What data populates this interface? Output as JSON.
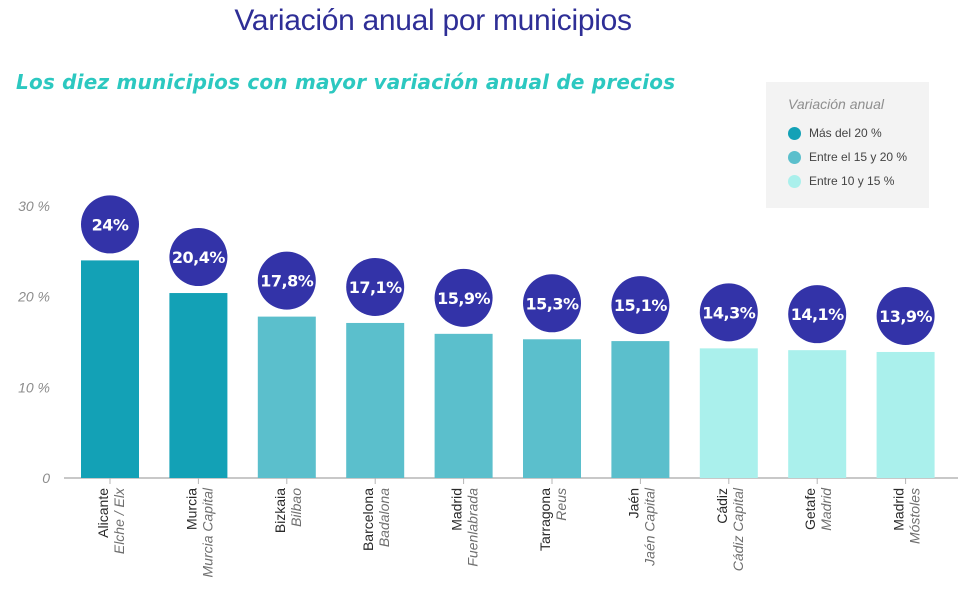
{
  "title": "Variación anual por municipios",
  "subtitle": "Los diez municipios con mayor variación anual de precios",
  "legend": {
    "title": "Variación anual",
    "items": [
      {
        "label": "Más del 20 %",
        "color": "#13a1b6"
      },
      {
        "label": "Entre el 15 y 20 %",
        "color": "#5bbfcc"
      },
      {
        "label": "Entre 10 y 15 %",
        "color": "#aaf0ec"
      }
    ]
  },
  "chart_data": {
    "type": "bar",
    "y_ticks": [
      "0",
      "10 %",
      "20 %",
      "30 %"
    ],
    "y_tick_values": [
      0,
      10,
      20,
      30
    ],
    "ylim": [
      0,
      30
    ],
    "grid": false,
    "legend_position": "top-right",
    "categories": [
      {
        "province": "Alicante",
        "municipality": "Elche / Elx",
        "value": 24,
        "label": "24%",
        "group": 0
      },
      {
        "province": "Murcia",
        "municipality": "Murcia Capital",
        "value": 20.4,
        "label": "20,4%",
        "group": 0
      },
      {
        "province": "Bizkaia",
        "municipality": "Bilbao",
        "value": 17.8,
        "label": "17,8%",
        "group": 1
      },
      {
        "province": "Barcelona",
        "municipality": "Badalona",
        "value": 17.1,
        "label": "17,1%",
        "group": 1
      },
      {
        "province": "Madrid",
        "municipality": "Fuenlabrada",
        "value": 15.9,
        "label": "15,9%",
        "group": 1
      },
      {
        "province": "Tarragona",
        "municipality": "Reus",
        "value": 15.3,
        "label": "15,3%",
        "group": 1
      },
      {
        "province": "Jaén",
        "municipality": "Jaén Capital",
        "value": 15.1,
        "label": "15,1%",
        "group": 1
      },
      {
        "province": "Cádiz",
        "municipality": "Cádiz Capital",
        "value": 14.3,
        "label": "14,3%",
        "group": 2
      },
      {
        "province": "Getafe",
        "municipality": "Madrid",
        "value": 14.1,
        "label": "14,1%",
        "group": 2
      },
      {
        "province": "Madrid",
        "municipality": "Móstoles",
        "value": 13.9,
        "label": "13,9%",
        "group": 2
      }
    ]
  },
  "colors": {
    "badge": "#3333a8",
    "axis": "#b5b5b5"
  }
}
